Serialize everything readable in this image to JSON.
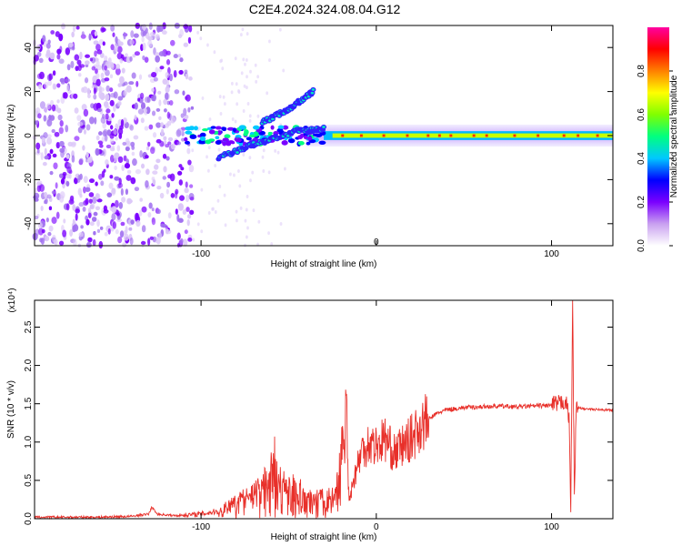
{
  "figure": {
    "title": "C2E4.2024.324.08.04.G12"
  },
  "chart_data": [
    {
      "type": "heatmap",
      "title": "C2E4.2024.324.08.04.G12",
      "xlabel": "Height of straight line (km)",
      "ylabel": "Frequency (Hz)",
      "xlim": [
        -195,
        135
      ],
      "ylim": [
        -50,
        50
      ],
      "x_ticks": [
        -100,
        0,
        100
      ],
      "x_tick_labels": [
        "-100",
        "",
        "100"
      ],
      "x_minor_tick_labels": [
        "0"
      ],
      "y_ticks": [
        -40,
        -20,
        0,
        20,
        40
      ],
      "y_tick_labels": [
        "-40",
        "-20",
        "0",
        "20",
        "40"
      ],
      "colorbar": {
        "label": "Normalized spectral amplitude",
        "range": [
          0.0,
          1.0
        ],
        "ticks": [
          0.0,
          0.2,
          0.4,
          0.6,
          0.8
        ],
        "tick_labels": [
          "0.0",
          "0.2",
          "0.4",
          "0.6",
          "0.8"
        ],
        "colors": [
          "#ffffff",
          "#c9a0f0",
          "#7a00ff",
          "#0000ff",
          "#00c8ff",
          "#00ff80",
          "#80ff00",
          "#ffff00",
          "#ff8000",
          "#ff0000",
          "#ff00a0"
        ]
      },
      "features": [
        {
          "name": "main-spectral-line",
          "x_range": [
            -30,
            135
          ],
          "freq_hz": 0,
          "amplitude": 0.55
        },
        {
          "name": "upper-branch",
          "points": [
            [
              -65,
              6
            ],
            [
              -50,
              12
            ],
            [
              -36,
              20
            ]
          ],
          "amplitude": 0.35
        },
        {
          "name": "lower-branch",
          "points": [
            [
              -90,
              -10
            ],
            [
              -70,
              -4
            ],
            [
              -45,
              2
            ],
            [
              -30,
              3
            ]
          ],
          "amplitude": 0.35
        },
        {
          "name": "noise-band-wide",
          "x_range": [
            -195,
            -140
          ],
          "freq_range": [
            -50,
            50
          ],
          "amplitude": 0.2
        },
        {
          "name": "noise-band-mid",
          "x_range": [
            -140,
            -105
          ],
          "freq_range": [
            -50,
            50
          ],
          "amplitude": 0.15
        }
      ]
    },
    {
      "type": "line",
      "xlabel": "Height of straight line (km)",
      "ylabel": "SNR (10 * v/v)",
      "scale_label": "(x10⁴)",
      "xlim": [
        -195,
        135
      ],
      "ylim": [
        0,
        2.85
      ],
      "x_ticks": [
        -100,
        0,
        100
      ],
      "x_tick_labels": [
        "-100",
        "0",
        "100"
      ],
      "y_ticks": [
        0,
        0.5,
        1.0,
        1.5,
        2.0,
        2.5
      ],
      "y_tick_labels": [
        "0.0",
        "0.5",
        "1.0",
        "1.5",
        "2.0",
        "2.5"
      ],
      "series": [
        {
          "name": "SNR",
          "color": "#e8302a",
          "points": [
            [
              -195,
              0.02
            ],
            [
              -180,
              0.02
            ],
            [
              -160,
              0.02
            ],
            [
              -140,
              0.03
            ],
            [
              -130,
              0.06
            ],
            [
              -128,
              0.15
            ],
            [
              -125,
              0.06
            ],
            [
              -115,
              0.04
            ],
            [
              -100,
              0.06
            ],
            [
              -90,
              0.1
            ],
            [
              -85,
              0.2
            ],
            [
              -80,
              0.25
            ],
            [
              -75,
              0.32
            ],
            [
              -70,
              0.4
            ],
            [
              -66,
              0.45
            ],
            [
              -62,
              0.6
            ],
            [
              -58,
              0.9
            ],
            [
              -55,
              0.55
            ],
            [
              -50,
              0.5
            ],
            [
              -45,
              0.42
            ],
            [
              -40,
              0.38
            ],
            [
              -35,
              0.3
            ],
            [
              -30,
              0.32
            ],
            [
              -25,
              0.35
            ],
            [
              -22,
              0.5
            ],
            [
              -20,
              1.0
            ],
            [
              -18,
              0.9
            ],
            [
              -17,
              1.8
            ],
            [
              -16,
              0.35
            ],
            [
              -15,
              0.3
            ],
            [
              -12,
              0.6
            ],
            [
              -8,
              0.9
            ],
            [
              -4,
              1.0
            ],
            [
              0,
              0.95
            ],
            [
              5,
              1.05
            ],
            [
              10,
              0.85
            ],
            [
              15,
              0.95
            ],
            [
              20,
              1.05
            ],
            [
              25,
              1.2
            ],
            [
              30,
              1.3
            ],
            [
              35,
              1.38
            ],
            [
              40,
              1.42
            ],
            [
              50,
              1.45
            ],
            [
              60,
              1.46
            ],
            [
              70,
              1.47
            ],
            [
              80,
              1.46
            ],
            [
              90,
              1.47
            ],
            [
              100,
              1.48
            ],
            [
              105,
              1.5
            ],
            [
              108,
              1.55
            ],
            [
              110,
              1.3
            ],
            [
              111,
              0.1
            ],
            [
              112,
              2.9
            ],
            [
              113,
              0.25
            ],
            [
              114,
              1.45
            ],
            [
              120,
              1.43
            ],
            [
              130,
              1.42
            ],
            [
              135,
              1.42
            ]
          ]
        }
      ]
    }
  ]
}
